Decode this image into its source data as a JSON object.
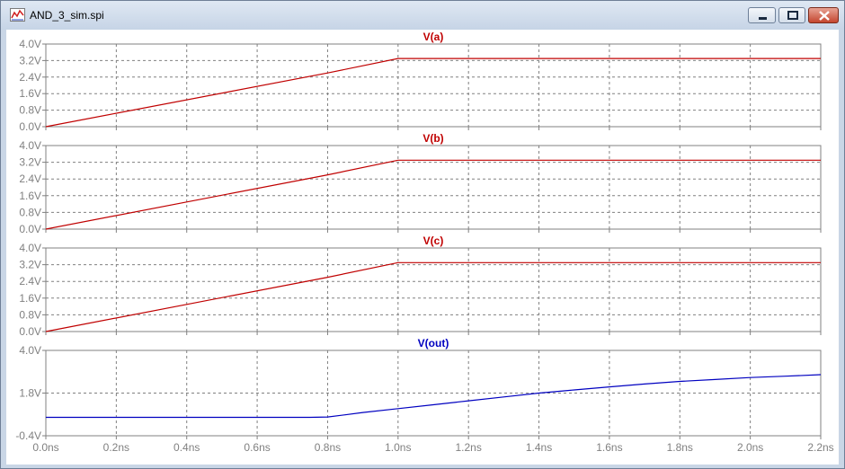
{
  "window": {
    "title": "AND_3_sim.spi",
    "icon": "waveform-icon"
  },
  "colors": {
    "input_trace": "#c00000",
    "output_trace": "#0000c0",
    "grid": "#808080"
  },
  "chart_data": [
    {
      "type": "line",
      "title": "V(a)",
      "xlim": [
        0,
        2.2
      ],
      "ylim": [
        0,
        4.0
      ],
      "yticks": [
        "0.0V",
        "0.8V",
        "1.6V",
        "2.4V",
        "3.2V",
        "4.0V"
      ],
      "grid": true,
      "series": [
        {
          "name": "V(a)",
          "x": [
            0,
            0.8,
            1.0,
            2.2
          ],
          "y": [
            0,
            2.6,
            3.3,
            3.3
          ]
        }
      ]
    },
    {
      "type": "line",
      "title": "V(b)",
      "xlim": [
        0,
        2.2
      ],
      "ylim": [
        0,
        4.0
      ],
      "yticks": [
        "0.0V",
        "0.8V",
        "1.6V",
        "2.4V",
        "3.2V",
        "4.0V"
      ],
      "grid": true,
      "series": [
        {
          "name": "V(b)",
          "x": [
            0,
            0.8,
            1.0,
            2.2
          ],
          "y": [
            0,
            2.6,
            3.3,
            3.3
          ]
        }
      ]
    },
    {
      "type": "line",
      "title": "V(c)",
      "xlim": [
        0,
        2.2
      ],
      "ylim": [
        0,
        4.0
      ],
      "yticks": [
        "0.0V",
        "0.8V",
        "1.6V",
        "2.4V",
        "3.2V",
        "4.0V"
      ],
      "grid": true,
      "series": [
        {
          "name": "V(c)",
          "x": [
            0,
            0.8,
            1.0,
            2.2
          ],
          "y": [
            0,
            2.6,
            3.3,
            3.3
          ]
        }
      ]
    },
    {
      "type": "line",
      "title": "V(out)",
      "xlim": [
        0,
        2.2
      ],
      "ylim": [
        -0.4,
        4.0
      ],
      "yticks": [
        "-0.4V",
        "1.8V",
        "4.0V"
      ],
      "xticks": [
        "0.0ns",
        "0.2ns",
        "0.4ns",
        "0.6ns",
        "0.8ns",
        "1.0ns",
        "1.2ns",
        "1.4ns",
        "1.6ns",
        "1.8ns",
        "2.0ns",
        "2.2ns"
      ],
      "grid": true,
      "series": [
        {
          "name": "V(out)",
          "x": [
            0,
            0.75,
            0.8,
            0.85,
            0.9,
            1.0,
            1.1,
            1.2,
            1.3,
            1.4,
            1.5,
            1.6,
            1.7,
            1.8,
            1.9,
            2.0,
            2.1,
            2.2
          ],
          "y": [
            0.55,
            0.55,
            0.57,
            0.68,
            0.8,
            1.0,
            1.2,
            1.4,
            1.6,
            1.8,
            1.96,
            2.12,
            2.27,
            2.4,
            2.5,
            2.6,
            2.67,
            2.75
          ]
        }
      ]
    }
  ]
}
